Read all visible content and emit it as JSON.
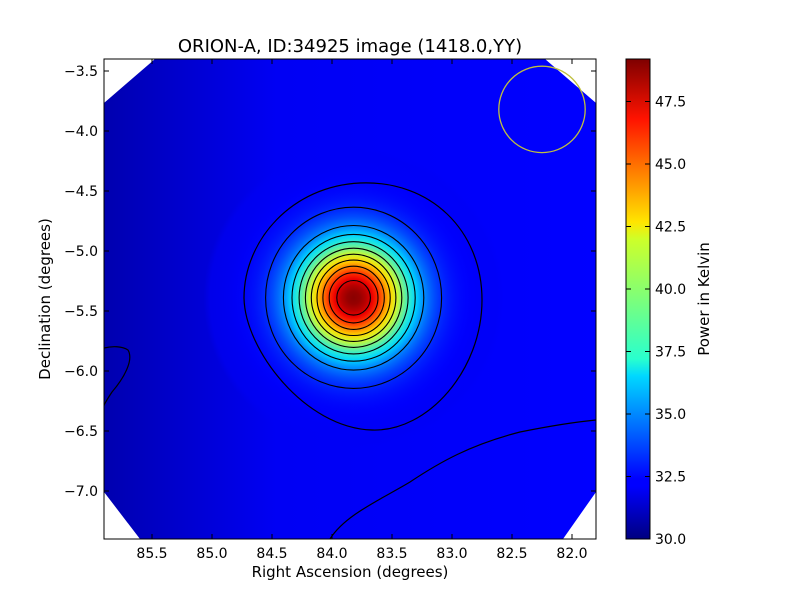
{
  "chart_data": {
    "type": "heatmap",
    "title": "ORION-A, ID:34925 image (1418.0,YY)",
    "xlabel": "Right Ascension (degrees)",
    "ylabel": "Declination (degrees)",
    "xlim": [
      85.9,
      81.8
    ],
    "ylim": [
      -7.4,
      -3.4
    ],
    "x_ticks": [
      {
        "value": 85.5,
        "label": "85.5"
      },
      {
        "value": 85.0,
        "label": "85.0"
      },
      {
        "value": 84.5,
        "label": "84.5"
      },
      {
        "value": 84.0,
        "label": "84.0"
      },
      {
        "value": 83.5,
        "label": "83.5"
      },
      {
        "value": 83.0,
        "label": "83.0"
      },
      {
        "value": 82.5,
        "label": "82.5"
      },
      {
        "value": 82.0,
        "label": "82.0"
      }
    ],
    "y_ticks": [
      {
        "value": -3.5,
        "label": "−3.5"
      },
      {
        "value": -4.0,
        "label": "−4.0"
      },
      {
        "value": -4.5,
        "label": "−4.5"
      },
      {
        "value": -5.0,
        "label": "−5.0"
      },
      {
        "value": -5.5,
        "label": "−5.5"
      },
      {
        "value": -6.0,
        "label": "−6.0"
      },
      {
        "value": -6.5,
        "label": "−6.5"
      },
      {
        "value": -7.0,
        "label": "−7.0"
      }
    ],
    "colorbar": {
      "label": "Power in Kelvin",
      "range": [
        30.0,
        49.2
      ],
      "colormap": "jet",
      "ticks": [
        {
          "value": 30.0,
          "label": "30.0"
        },
        {
          "value": 32.5,
          "label": "32.5"
        },
        {
          "value": 35.0,
          "label": "35.0"
        },
        {
          "value": 37.5,
          "label": "37.5"
        },
        {
          "value": 40.0,
          "label": "40.0"
        },
        {
          "value": 42.5,
          "label": "42.5"
        },
        {
          "value": 45.0,
          "label": "45.0"
        },
        {
          "value": 47.5,
          "label": "47.5"
        }
      ]
    },
    "source": {
      "ra": 83.82,
      "dec": -5.39,
      "peak_kelvin": 49.0,
      "background_kelvin": 32.2
    },
    "contour_levels": [
      33.5,
      35.5,
      37.0,
      38.5,
      40.0,
      41.5,
      43.0,
      44.5,
      46.0,
      47.5
    ],
    "beam": {
      "ra": 82.25,
      "dec": -3.82,
      "radius_deg": 0.36,
      "color": "#bfbf40"
    },
    "colors": {
      "contour": "#000000",
      "outside_mask": "#ffffff"
    }
  }
}
